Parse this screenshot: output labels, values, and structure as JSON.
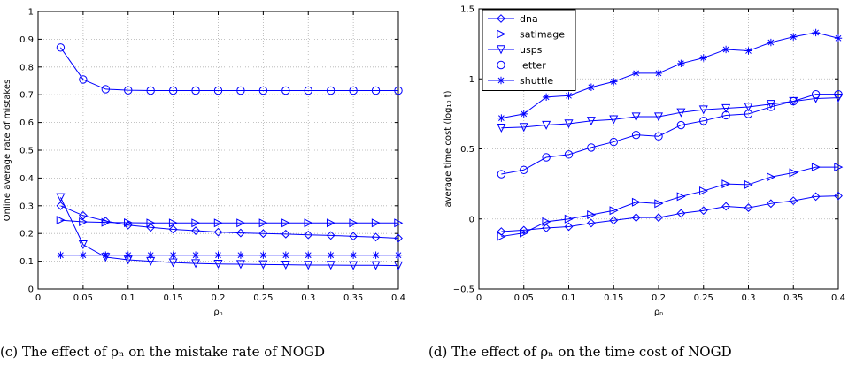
{
  "captions": {
    "left": "(c) The effect of ρₙ on the mistake rate of NOGD",
    "right": "(d) The effect of ρₙ on the time cost of NOGD"
  },
  "chart_data": [
    {
      "type": "line",
      "xlabel": "ρₙ",
      "ylabel": "Online average rate of mistakes",
      "xlim": [
        0,
        0.4
      ],
      "ylim": [
        0,
        1
      ],
      "xticks": [
        0,
        0.05,
        0.1,
        0.15,
        0.2,
        0.25,
        0.3,
        0.35,
        0.4
      ],
      "xtick_labels": [
        "0",
        "0.05",
        "0.1",
        "0.15",
        "0.2",
        "0.25",
        "0.3",
        "0.35",
        "0.4"
      ],
      "yticks": [
        0,
        0.1,
        0.2,
        0.3,
        0.4,
        0.5,
        0.6,
        0.7,
        0.8,
        0.9,
        1
      ],
      "ytick_labels": [
        "0",
        "0.1",
        "0.2",
        "0.3",
        "0.4",
        "0.5",
        "0.6",
        "0.7",
        "0.8",
        "0.9",
        "1"
      ],
      "grid": true,
      "legend": "none",
      "x": [
        0.025,
        0.05,
        0.075,
        0.1,
        0.125,
        0.15,
        0.175,
        0.2,
        0.225,
        0.25,
        0.275,
        0.3,
        0.325,
        0.35,
        0.375,
        0.4
      ],
      "series": [
        {
          "marker": "diamond",
          "values": [
            0.3,
            0.265,
            0.245,
            0.23,
            0.222,
            0.215,
            0.21,
            0.205,
            0.202,
            0.2,
            0.198,
            0.195,
            0.193,
            0.19,
            0.187,
            0.183
          ]
        },
        {
          "marker": "triangle-right",
          "values": [
            0.248,
            0.242,
            0.24,
            0.239,
            0.238,
            0.238,
            0.238,
            0.238,
            0.238,
            0.238,
            0.238,
            0.238,
            0.238,
            0.238,
            0.238,
            0.238
          ]
        },
        {
          "marker": "triangle-down",
          "values": [
            0.33,
            0.16,
            0.115,
            0.105,
            0.1,
            0.095,
            0.092,
            0.09,
            0.089,
            0.088,
            0.087,
            0.086,
            0.086,
            0.085,
            0.085,
            0.084
          ]
        },
        {
          "marker": "circle",
          "values": [
            0.87,
            0.755,
            0.72,
            0.716,
            0.715,
            0.715,
            0.715,
            0.715,
            0.715,
            0.715,
            0.715,
            0.715,
            0.715,
            0.715,
            0.715,
            0.715
          ]
        },
        {
          "marker": "asterisk",
          "values": [
            0.122,
            0.122,
            0.122,
            0.122,
            0.122,
            0.122,
            0.122,
            0.122,
            0.122,
            0.122,
            0.122,
            0.122,
            0.122,
            0.122,
            0.122,
            0.122
          ]
        }
      ]
    },
    {
      "type": "line",
      "xlabel": "ρₙ",
      "ylabel": "average time cost (log₁₀ t)",
      "xlim": [
        0,
        0.4
      ],
      "ylim": [
        -0.5,
        1.5
      ],
      "xticks": [
        0,
        0.05,
        0.1,
        0.15,
        0.2,
        0.25,
        0.3,
        0.35,
        0.4
      ],
      "xtick_labels": [
        "0",
        "0.05",
        "0.1",
        "0.15",
        "0.2",
        "0.25",
        "0.3",
        "0.35",
        "0.4"
      ],
      "yticks": [
        -0.5,
        0,
        0.5,
        1,
        1.5
      ],
      "ytick_labels": [
        "−0.5",
        "0",
        "0.5",
        "1",
        "1.5"
      ],
      "grid": true,
      "legend": "top-left",
      "x": [
        0.025,
        0.05,
        0.075,
        0.1,
        0.125,
        0.15,
        0.175,
        0.2,
        0.225,
        0.25,
        0.275,
        0.3,
        0.325,
        0.35,
        0.375,
        0.4
      ],
      "series": [
        {
          "name": "dna",
          "marker": "diamond",
          "values": [
            -0.09,
            -0.08,
            -0.065,
            -0.055,
            -0.03,
            -0.01,
            0.01,
            0.01,
            0.04,
            0.06,
            0.09,
            0.08,
            0.11,
            0.13,
            0.16,
            0.165
          ]
        },
        {
          "name": "satimage",
          "marker": "triangle-right",
          "values": [
            -0.125,
            -0.1,
            -0.02,
            0.0,
            0.03,
            0.06,
            0.12,
            0.11,
            0.16,
            0.2,
            0.25,
            0.245,
            0.3,
            0.33,
            0.37,
            0.37
          ]
        },
        {
          "name": "usps",
          "marker": "triangle-down",
          "values": [
            0.65,
            0.655,
            0.67,
            0.68,
            0.7,
            0.71,
            0.73,
            0.73,
            0.76,
            0.78,
            0.79,
            0.8,
            0.82,
            0.84,
            0.86,
            0.865
          ]
        },
        {
          "name": "letter",
          "marker": "circle",
          "values": [
            0.32,
            0.35,
            0.44,
            0.46,
            0.51,
            0.55,
            0.6,
            0.59,
            0.67,
            0.7,
            0.74,
            0.75,
            0.8,
            0.84,
            0.89,
            0.89
          ]
        },
        {
          "name": "shuttle",
          "marker": "asterisk",
          "values": [
            0.72,
            0.75,
            0.87,
            0.88,
            0.94,
            0.98,
            1.04,
            1.04,
            1.11,
            1.15,
            1.21,
            1.2,
            1.26,
            1.3,
            1.33,
            1.29
          ]
        }
      ]
    }
  ],
  "colors": {
    "line": "#0000ff",
    "axis": "#000000",
    "grid": "#b0b0b0"
  }
}
